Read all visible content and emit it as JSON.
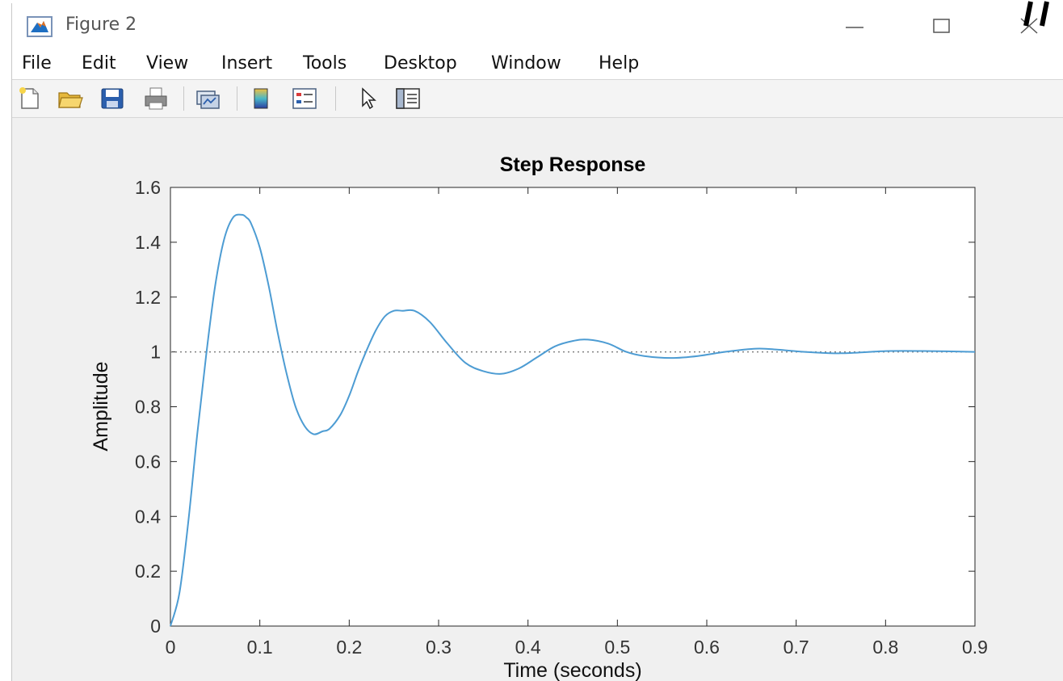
{
  "window": {
    "title": "Figure 2"
  },
  "menu": [
    {
      "id": "file",
      "label": "File"
    },
    {
      "id": "edit",
      "label": "Edit"
    },
    {
      "id": "view",
      "label": "View"
    },
    {
      "id": "insert",
      "label": "Insert"
    },
    {
      "id": "tools",
      "label": "Tools"
    },
    {
      "id": "desktop",
      "label": "Desktop"
    },
    {
      "id": "window",
      "label": "Window"
    },
    {
      "id": "help",
      "label": "Help"
    }
  ],
  "toolbar": [
    {
      "id": "new",
      "icon": "new-figure-icon"
    },
    {
      "id": "open",
      "icon": "open-file-icon"
    },
    {
      "id": "save",
      "icon": "save-icon"
    },
    {
      "id": "print",
      "icon": "print-icon"
    },
    {
      "id": "link",
      "icon": "link-plot-icon"
    },
    {
      "id": "colorbar",
      "icon": "colorbar-icon"
    },
    {
      "id": "legend",
      "icon": "legend-icon"
    },
    {
      "id": "edit-plot",
      "icon": "pointer-icon"
    },
    {
      "id": "property",
      "icon": "property-editor-icon"
    }
  ],
  "chart_data": {
    "type": "line",
    "title": "Step Response",
    "xlabel": "Time (seconds)",
    "ylabel": "Amplitude",
    "xlim": [
      0,
      0.9
    ],
    "ylim": [
      0,
      1.6
    ],
    "xticks": [
      0,
      0.1,
      0.2,
      0.3,
      0.4,
      0.5,
      0.6,
      0.7,
      0.8,
      0.9
    ],
    "xtick_labels": [
      "0",
      "0.1",
      "0.2",
      "0.3",
      "0.4",
      "0.5",
      "0.6",
      "0.7",
      "0.8",
      "0.9"
    ],
    "yticks": [
      0,
      0.2,
      0.4,
      0.6,
      0.8,
      1,
      1.2,
      1.4,
      1.6
    ],
    "ytick_labels": [
      "0",
      "0.2",
      "0.4",
      "0.6",
      "0.8",
      "1",
      "1.2",
      "1.4",
      "1.6"
    ],
    "reference_line": {
      "y": 1,
      "style": "dotted",
      "color": "#808080"
    },
    "series": [
      {
        "color": "#4d9cd3",
        "x": [
          0,
          0.01,
          0.02,
          0.03,
          0.04,
          0.05,
          0.06,
          0.07,
          0.08,
          0.085,
          0.09,
          0.1,
          0.11,
          0.12,
          0.13,
          0.14,
          0.15,
          0.16,
          0.17,
          0.178,
          0.19,
          0.2,
          0.21,
          0.22,
          0.23,
          0.24,
          0.25,
          0.26,
          0.273,
          0.29,
          0.31,
          0.33,
          0.35,
          0.37,
          0.39,
          0.41,
          0.43,
          0.45,
          0.467,
          0.49,
          0.51,
          0.53,
          0.56,
          0.59,
          0.62,
          0.655,
          0.68,
          0.71,
          0.75,
          0.8,
          0.85,
          0.9
        ],
        "y": [
          0,
          0.12,
          0.38,
          0.7,
          0.99,
          1.24,
          1.41,
          1.49,
          1.5,
          1.49,
          1.47,
          1.38,
          1.24,
          1.07,
          0.92,
          0.8,
          0.73,
          0.7,
          0.71,
          0.72,
          0.77,
          0.84,
          0.93,
          1.01,
          1.08,
          1.13,
          1.15,
          1.15,
          1.15,
          1.11,
          1.03,
          0.96,
          0.93,
          0.92,
          0.94,
          0.98,
          1.02,
          1.04,
          1.045,
          1.03,
          1.0,
          0.985,
          0.978,
          0.985,
          1.0,
          1.012,
          1.008,
          1.0,
          0.995,
          1.003,
          1.003,
          1.0
        ]
      }
    ]
  }
}
